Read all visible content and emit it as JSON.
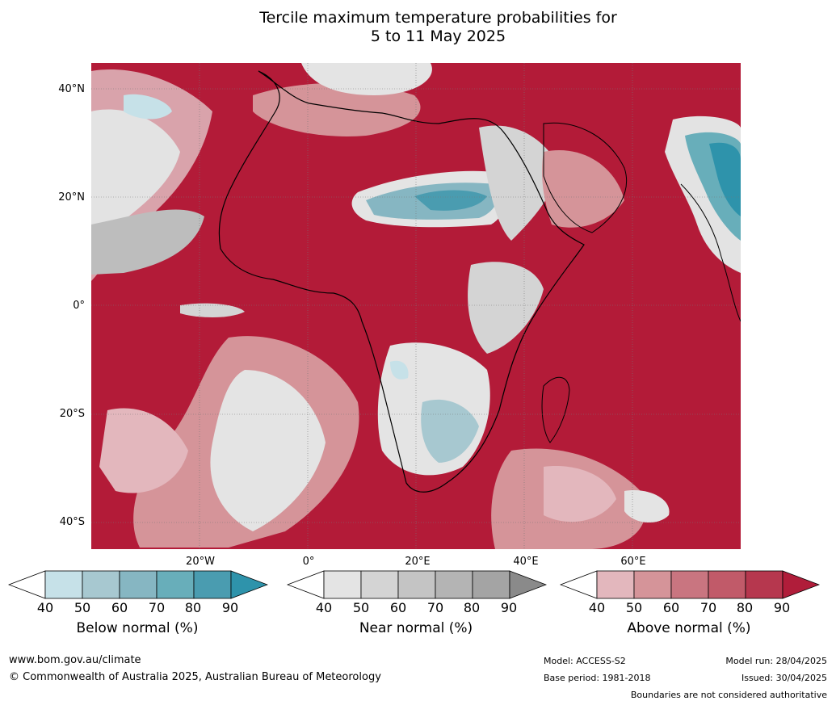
{
  "title": {
    "line1": "Tercile maximum temperature probabilities for",
    "line2": "5 to 11 May 2025"
  },
  "map": {
    "lat_labels": [
      "40°N",
      "20°N",
      "0°",
      "20°S",
      "40°S"
    ],
    "lon_labels": [
      "20°W",
      "0°",
      "20°E",
      "40°E",
      "60°E"
    ],
    "dominant_color": "#b31b38"
  },
  "colorbars": [
    {
      "caption": "Below normal (%)",
      "ticks": [
        "40",
        "50",
        "60",
        "70",
        "80",
        "90"
      ],
      "colors": [
        "#ffffff",
        "#c6e1e8",
        "#a7c8d0",
        "#86b6c2",
        "#68aeba",
        "#4a9cb0",
        "#2e93ab"
      ]
    },
    {
      "caption": "Near normal (%)",
      "ticks": [
        "40",
        "50",
        "60",
        "70",
        "80",
        "90"
      ],
      "colors": [
        "#ffffff",
        "#e4e4e4",
        "#d4d4d4",
        "#c4c4c4",
        "#b4b4b4",
        "#a4a4a4",
        "#8a8a8a"
      ]
    },
    {
      "caption": "Above normal (%)",
      "ticks": [
        "40",
        "50",
        "60",
        "70",
        "80",
        "90"
      ],
      "colors": [
        "#ffffff",
        "#e3b7bd",
        "#d59499",
        "#c97580",
        "#c15a69",
        "#b6374e",
        "#b01d3a"
      ]
    }
  ],
  "footer": {
    "url": "www.bom.gov.au/climate",
    "copyright": "© Commonwealth of Australia 2025, Australian Bureau of Meteorology",
    "model": "Model: ACCESS-S2",
    "base_period": "Base period: 1981-2018",
    "model_run": "Model run: 28/04/2025",
    "issued": "Issued: 30/04/2025",
    "boundaries": "Boundaries are not considered authoritative"
  }
}
